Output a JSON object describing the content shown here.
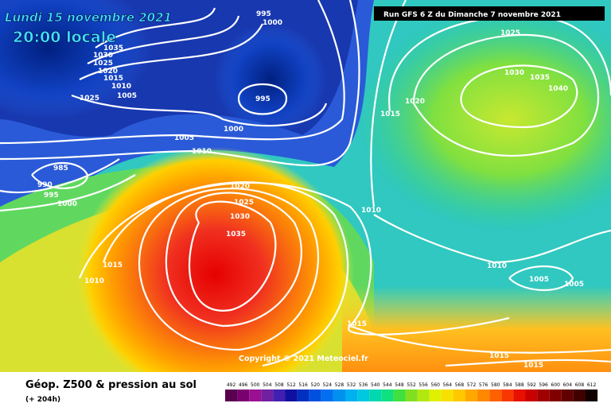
{
  "header": {
    "date": "Lundi 15 novembre 2021",
    "time": "20:00 locale",
    "run": "Run GFS 6 Z du Dimanche 7 novembre 2021"
  },
  "copyright": "Copyright © 2021 Meteociel.fr",
  "footer": {
    "title": "Géop. Z500 & pression au sol",
    "lead": "(+ 204h)"
  },
  "scale_labels": [
    "492",
    "496",
    "500",
    "504",
    "508",
    "512",
    "516",
    "520",
    "524",
    "528",
    "532",
    "536",
    "540",
    "544",
    "548",
    "552",
    "556",
    "560",
    "564",
    "568",
    "572",
    "576",
    "580",
    "584",
    "588",
    "592",
    "596",
    "600",
    "604",
    "608",
    "612"
  ],
  "isobar_labels": [
    "995",
    "1000",
    "1035",
    "1030",
    "1025",
    "1020",
    "1015",
    "1010",
    "1005",
    "1025",
    "995",
    "1000",
    "1005",
    "1010",
    "985",
    "990",
    "995",
    "1000",
    "1020",
    "1025",
    "1030",
    "1035",
    "1015",
    "1010",
    "1025",
    "1030",
    "1035",
    "1040",
    "1020",
    "1015",
    "1010",
    "1010",
    "1005",
    "1005",
    "1015",
    "1015",
    "1015"
  ]
}
